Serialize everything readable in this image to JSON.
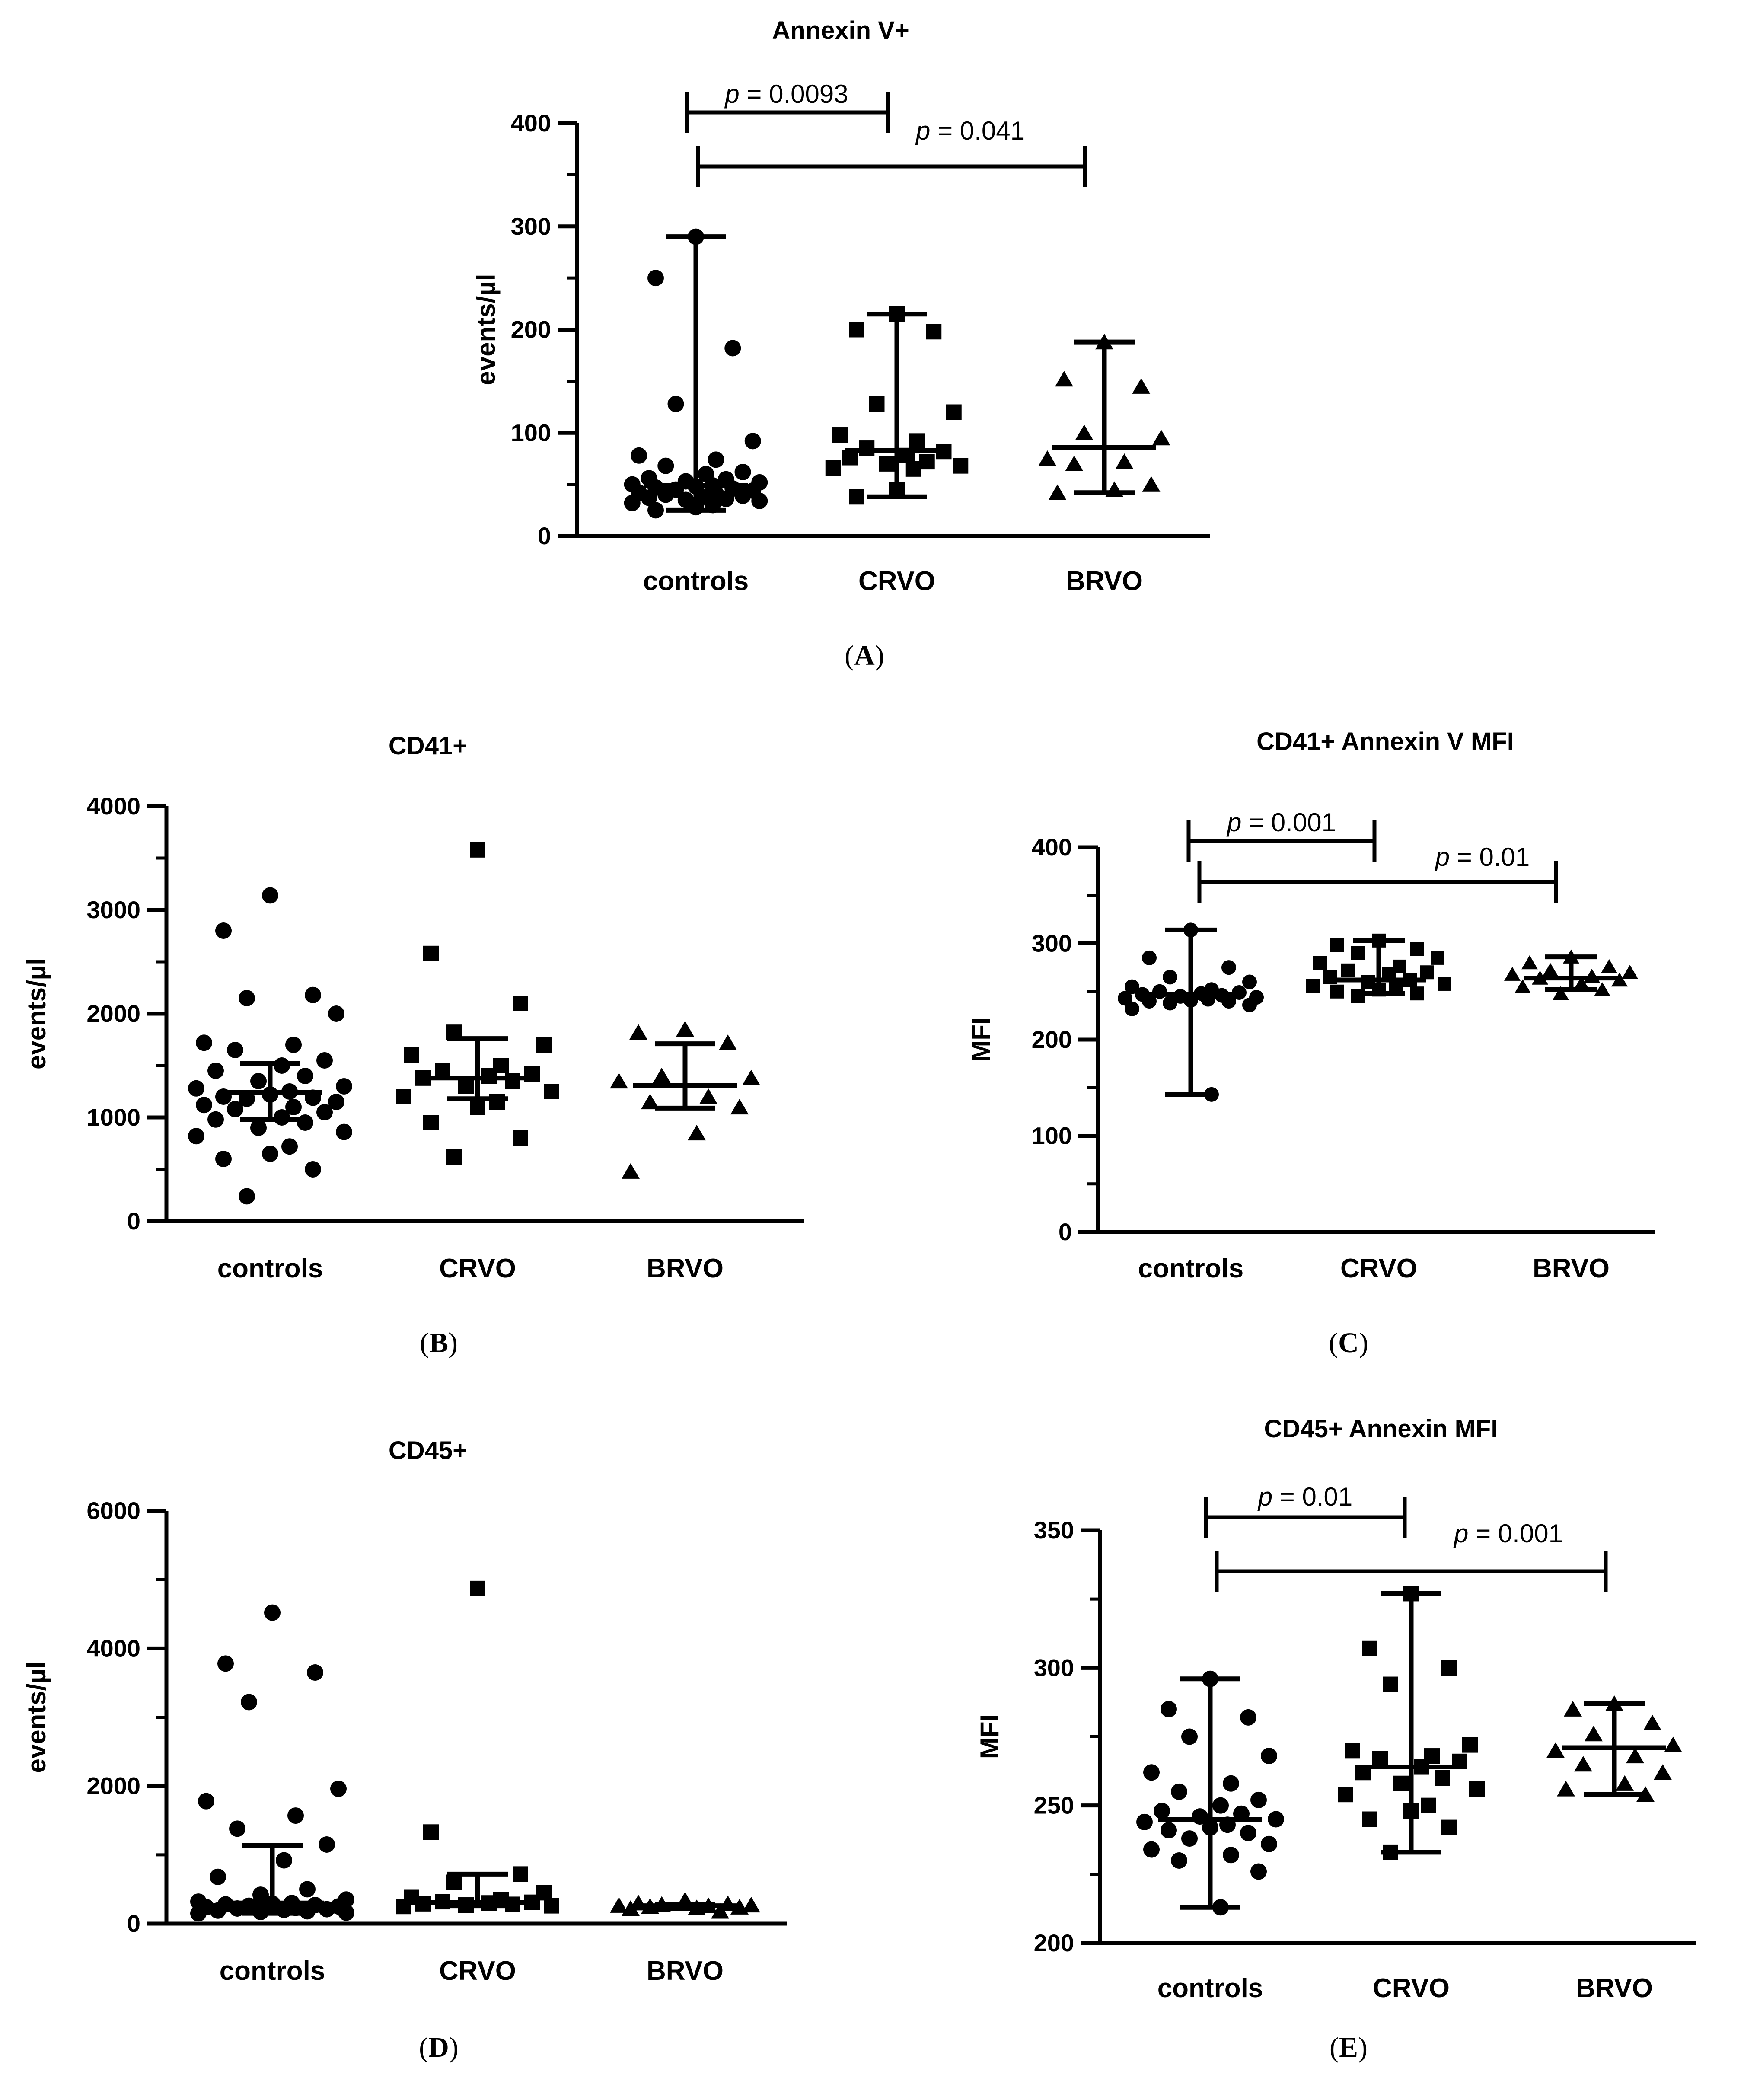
{
  "chart_data": [
    {
      "panel": "(A)",
      "type": "scatter",
      "title": "Annexin V+",
      "ylabel": "events/µl",
      "xlabel": "",
      "ylim": [
        0,
        400
      ],
      "yticks": [
        0,
        100,
        200,
        300,
        400
      ],
      "ytick_labels": [
        "0",
        "100",
        "200",
        "300",
        "400"
      ],
      "minor_ticks": true,
      "categories": [
        "controls",
        "CRVO",
        "BRVO"
      ],
      "series": [
        {
          "name": "controls",
          "marker": "circle",
          "median": 49,
          "range": [
            25,
            290
          ],
          "values": [
            290,
            250,
            182,
            128,
            92,
            78,
            74,
            68,
            62,
            60,
            56,
            55,
            53,
            52,
            50,
            49,
            48,
            47,
            46,
            45,
            44,
            42,
            41,
            40,
            39,
            38,
            37,
            36,
            35,
            34,
            32,
            30,
            28,
            25
          ]
        },
        {
          "name": "CRVO",
          "marker": "square",
          "median": 83,
          "range": [
            38,
            215
          ],
          "values": [
            215,
            200,
            198,
            128,
            120,
            98,
            92,
            85,
            82,
            78,
            76,
            72,
            70,
            68,
            66,
            65,
            45,
            38
          ]
        },
        {
          "name": "BRVO",
          "marker": "triangle",
          "median": 86,
          "range": [
            42,
            188
          ],
          "values": [
            188,
            152,
            145,
            100,
            95,
            75,
            72,
            70,
            50,
            45,
            42
          ]
        }
      ],
      "comparisons": [
        {
          "from": "controls",
          "to": "CRVO",
          "label_italic": "p",
          "label_rest": " = 0.0093"
        },
        {
          "from": "controls",
          "to": "BRVO",
          "label_italic": "p",
          "label_rest": " = 0.041"
        }
      ]
    },
    {
      "panel": "(B)",
      "type": "scatter",
      "title": "CD41+",
      "ylabel": "events/µl",
      "xlabel": "",
      "ylim": [
        0,
        4000
      ],
      "yticks": [
        0,
        1000,
        2000,
        3000,
        4000
      ],
      "ytick_labels": [
        "0",
        "1000",
        "2000",
        "3000",
        "4000"
      ],
      "minor_ticks": true,
      "categories": [
        "controls",
        "CRVO",
        "BRVO"
      ],
      "series": [
        {
          "name": "controls",
          "marker": "circle",
          "median": 1240,
          "range": [
            980,
            1520
          ],
          "values": [
            3140,
            2800,
            2180,
            2150,
            2000,
            1720,
            1700,
            1650,
            1550,
            1500,
            1450,
            1400,
            1350,
            1300,
            1280,
            1250,
            1220,
            1200,
            1190,
            1180,
            1150,
            1120,
            1100,
            1080,
            1050,
            1000,
            980,
            950,
            900,
            860,
            820,
            720,
            650,
            600,
            500,
            240
          ]
        },
        {
          "name": "CRVO",
          "marker": "square",
          "median": 1380,
          "range": [
            1180,
            1760
          ],
          "values": [
            3580,
            2580,
            2100,
            1820,
            1700,
            1600,
            1500,
            1450,
            1420,
            1400,
            1380,
            1350,
            1300,
            1250,
            1200,
            1150,
            1100,
            950,
            800,
            620
          ]
        },
        {
          "name": "BRVO",
          "marker": "triangle",
          "median": 1310,
          "range": [
            1090,
            1710
          ],
          "values": [
            1850,
            1820,
            1720,
            1400,
            1380,
            1350,
            1200,
            1150,
            1100,
            850,
            480
          ]
        }
      ],
      "comparisons": []
    },
    {
      "panel": "(C)",
      "type": "scatter",
      "title": "CD41+ Annexin V MFI",
      "ylabel": "MFI",
      "xlabel": "",
      "ylim": [
        0,
        400
      ],
      "yticks": [
        0,
        100,
        200,
        300,
        400
      ],
      "ytick_labels": [
        "0",
        "100",
        "200",
        "300",
        "400"
      ],
      "minor_ticks": true,
      "categories": [
        "controls",
        "CRVO",
        "BRVO"
      ],
      "series": [
        {
          "name": "controls",
          "marker": "circle",
          "median": 247,
          "range": [
            143,
            314
          ],
          "values": [
            314,
            285,
            275,
            265,
            260,
            255,
            252,
            250,
            249,
            248,
            247,
            246,
            245,
            244,
            243,
            242,
            241,
            240,
            240,
            238,
            236,
            232,
            143
          ]
        },
        {
          "name": "CRVO",
          "marker": "square",
          "median": 262,
          "range": [
            248,
            303
          ],
          "values": [
            303,
            298,
            294,
            290,
            285,
            280,
            276,
            272,
            270,
            268,
            265,
            262,
            260,
            258,
            256,
            255,
            252,
            250,
            248,
            245
          ]
        },
        {
          "name": "BRVO",
          "marker": "triangle",
          "median": 264,
          "range": [
            252,
            286
          ],
          "values": [
            286,
            280,
            276,
            272,
            270,
            268,
            266,
            264,
            262,
            258,
            255,
            252,
            248
          ]
        }
      ],
      "comparisons": [
        {
          "from": "controls",
          "to": "CRVO",
          "label_italic": "p",
          "label_rest": " = 0.001"
        },
        {
          "from": "controls",
          "to": "BRVO",
          "label_italic": "p",
          "label_rest": " = 0.01"
        }
      ]
    },
    {
      "panel": "(D)",
      "type": "scatter",
      "title": "CD45+",
      "ylabel": "events/µl",
      "xlabel": "",
      "ylim": [
        0,
        6000
      ],
      "yticks": [
        0,
        2000,
        4000,
        6000
      ],
      "ytick_labels": [
        "0",
        "2000",
        "4000",
        "6000"
      ],
      "minor_ticks": true,
      "categories": [
        "controls",
        "CRVO",
        "BRVO"
      ],
      "series": [
        {
          "name": "controls",
          "marker": "circle",
          "median": 300,
          "range": [
            150,
            1140
          ],
          "values": [
            4520,
            3780,
            3650,
            3220,
            1960,
            1780,
            1570,
            1380,
            1150,
            920,
            680,
            500,
            420,
            350,
            320,
            300,
            290,
            280,
            270,
            260,
            250,
            240,
            230,
            220,
            210,
            200,
            190,
            180,
            170,
            160,
            150
          ]
        },
        {
          "name": "CRVO",
          "marker": "square",
          "median": 310,
          "range": [
            260,
            720
          ],
          "values": [
            4870,
            1330,
            720,
            600,
            450,
            380,
            350,
            320,
            310,
            300,
            290,
            280,
            270,
            260,
            250
          ]
        },
        {
          "name": "BRVO",
          "marker": "triangle",
          "median": 260,
          "range": [
            220,
            280
          ],
          "values": [
            340,
            300,
            290,
            280,
            270,
            265,
            260,
            250,
            240,
            230,
            220,
            180
          ]
        }
      ],
      "comparisons": []
    },
    {
      "panel": "(E)",
      "type": "scatter",
      "title": "CD45+ Annexin MFI",
      "ylabel": "MFI",
      "xlabel": "",
      "ylim": [
        200,
        350
      ],
      "yticks": [
        200,
        250,
        300,
        350
      ],
      "ytick_labels": [
        "200",
        "250",
        "300",
        "350"
      ],
      "minor_ticks": true,
      "categories": [
        "controls",
        "CRVO",
        "BRVO"
      ],
      "series": [
        {
          "name": "controls",
          "marker": "circle",
          "median": 245,
          "range": [
            213,
            296
          ],
          "values": [
            296,
            285,
            282,
            275,
            268,
            262,
            258,
            255,
            252,
            250,
            248,
            247,
            246,
            245,
            244,
            243,
            242,
            241,
            240,
            238,
            236,
            234,
            232,
            230,
            226,
            213
          ]
        },
        {
          "name": "CRVO",
          "marker": "square",
          "median": 264,
          "range": [
            233,
            327
          ],
          "values": [
            327,
            307,
            300,
            294,
            272,
            270,
            268,
            267,
            266,
            264,
            262,
            260,
            258,
            256,
            254,
            250,
            248,
            245,
            242,
            233
          ]
        },
        {
          "name": "BRVO",
          "marker": "triangle",
          "median": 271,
          "range": [
            254,
            287
          ],
          "values": [
            287,
            285,
            280,
            276,
            272,
            270,
            268,
            265,
            262,
            258,
            256,
            254
          ]
        }
      ],
      "comparisons": [
        {
          "from": "controls",
          "to": "CRVO",
          "label_italic": "p",
          "label_rest": " = 0.01"
        },
        {
          "from": "controls",
          "to": "BRVO",
          "label_italic": "p",
          "label_rest": " = 0.001"
        }
      ]
    }
  ]
}
